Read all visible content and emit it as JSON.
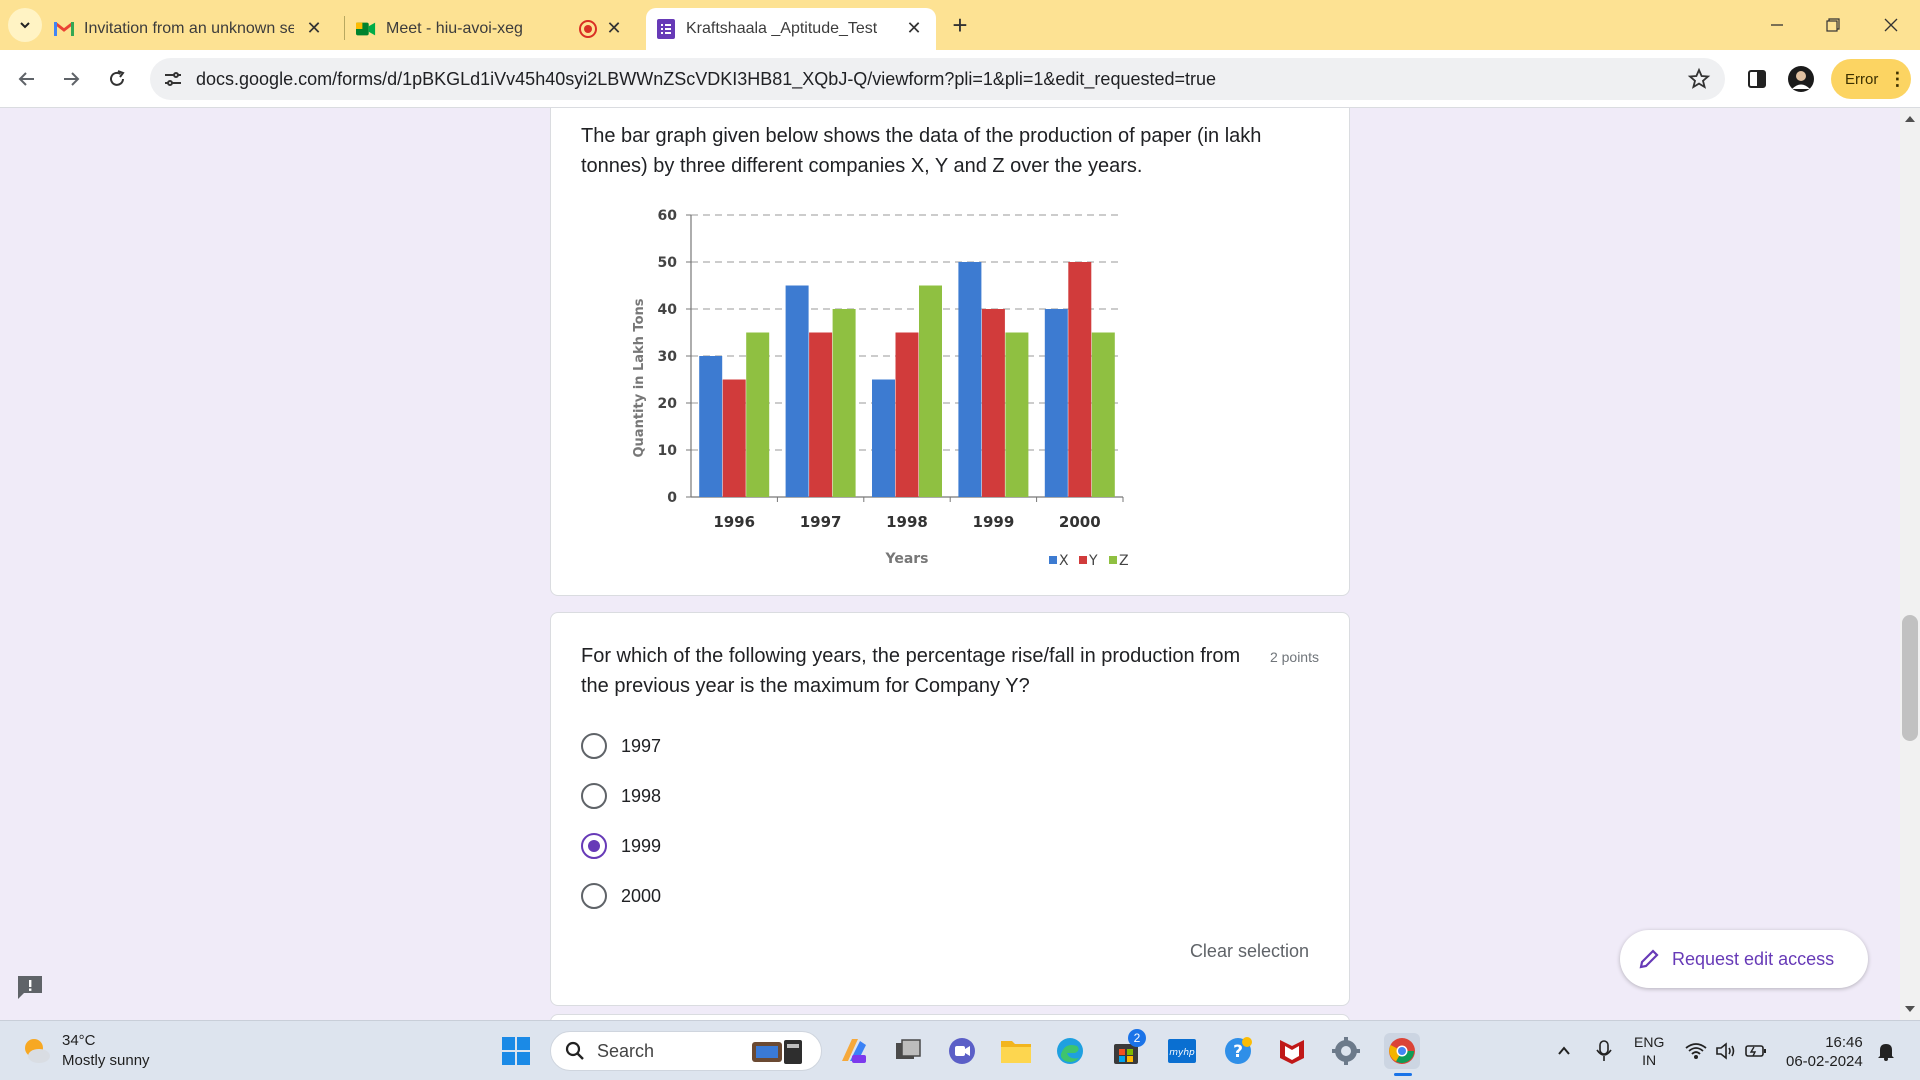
{
  "browser": {
    "tabs": [
      {
        "title": "Invitation from an unknown ser",
        "icon": "gmail-icon",
        "close": "✕"
      },
      {
        "title": "Meet - hiu-avoi-xeg",
        "icon": "meet-icon",
        "close": "✕"
      },
      {
        "title": "Kraftshaala _Aptitude_Test",
        "icon": "forms-icon",
        "close": "✕",
        "active": true
      }
    ],
    "new_tab": "+",
    "url": "docs.google.com/forms/d/1pBKGLd1iVv45h40syi2LBWWnZScVDKI3HB81_XQbJ-Q/viewform?pli=1&pli=1&edit_requested=true",
    "profile_status": "Error"
  },
  "form": {
    "description": "The bar graph given below shows the data of the production of paper (in lakh tonnes) by three different companies X, Y and Z over the years.",
    "question": {
      "text": "For which of the following years, the percentage rise/fall in production from the previous year is the maximum for Company Y?",
      "points": "2 points",
      "options": [
        "1997",
        "1998",
        "1999",
        "2000"
      ],
      "selected": "1999",
      "clear_label": "Clear selection"
    },
    "request_edit_label": "Request edit access"
  },
  "chart_data": {
    "type": "bar",
    "categories": [
      "1996",
      "1997",
      "1998",
      "1999",
      "2000"
    ],
    "series": [
      {
        "name": "X",
        "values": [
          30,
          45,
          25,
          50,
          40
        ],
        "color": "#3d7bd1"
      },
      {
        "name": "Y",
        "values": [
          25,
          35,
          35,
          40,
          50
        ],
        "color": "#d13b3b"
      },
      {
        "name": "Z",
        "values": [
          35,
          40,
          45,
          35,
          35
        ],
        "color": "#8fc041"
      }
    ],
    "xlabel": "Years",
    "ylabel": "Quantity in Lakh Tons",
    "ylim": [
      0,
      60
    ],
    "yticks": [
      "0",
      "10",
      "20",
      "30",
      "40",
      "50",
      "60"
    ],
    "grid": true,
    "legend": "bottom-right"
  },
  "taskbar": {
    "weather_temp": "34°C",
    "weather_desc": "Mostly sunny",
    "search_label": "Search",
    "store_badge": "2",
    "lang_line1": "ENG",
    "lang_line2": "IN",
    "time": "16:46",
    "date": "06-02-2024"
  }
}
